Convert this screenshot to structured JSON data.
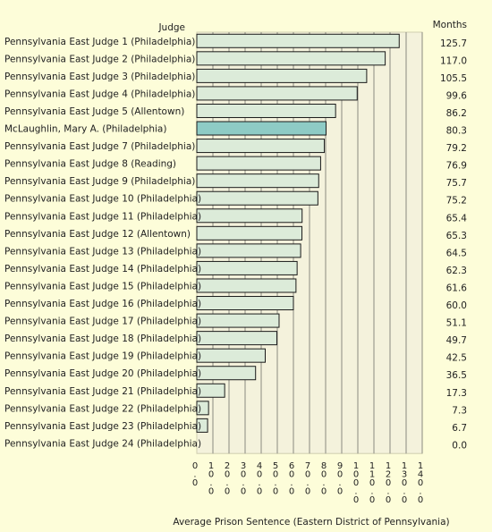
{
  "chart_data": {
    "type": "bar",
    "orientation": "horizontal",
    "category_header": "Judge",
    "value_header": "Months",
    "xlabel": "Average Prison Sentence (Eastern District of Pennsylvania)",
    "xlim": [
      0,
      140
    ],
    "xticks": [
      "0.0",
      "10.0",
      "20.0",
      "30.0",
      "40.0",
      "50.0",
      "60.0",
      "70.0",
      "80.0",
      "90.0",
      "100.0",
      "110.0",
      "120.0",
      "130.0",
      "140.0"
    ],
    "grid": true,
    "bar_color": "#dcebd9",
    "highlight_color": "#8ecbc5",
    "plot_background": "#f4f2dc",
    "categories": [
      "Pennsylvania East Judge 1 (Philadelphia)",
      "Pennsylvania East Judge 2 (Philadelphia)",
      "Pennsylvania East Judge 3 (Philadelphia)",
      "Pennsylvania East Judge 4 (Philadelphia)",
      "Pennsylvania East Judge 5 (Allentown)",
      "McLaughlin, Mary A. (Philadelphia)",
      "Pennsylvania East Judge 7 (Philadelphia)",
      "Pennsylvania East Judge 8 (Reading)",
      "Pennsylvania East Judge 9 (Philadelphia)",
      "Pennsylvania East Judge 10 (Philadelphia)",
      "Pennsylvania East Judge 11 (Philadelphia)",
      "Pennsylvania East Judge 12 (Allentown)",
      "Pennsylvania East Judge 13 (Philadelphia)",
      "Pennsylvania East Judge 14 (Philadelphia)",
      "Pennsylvania East Judge 15 (Philadelphia)",
      "Pennsylvania East Judge 16 (Philadelphia)",
      "Pennsylvania East Judge 17 (Philadelphia)",
      "Pennsylvania East Judge 18 (Philadelphia)",
      "Pennsylvania East Judge 19 (Philadelphia)",
      "Pennsylvania East Judge 20 (Philadelphia)",
      "Pennsylvania East Judge 21 (Philadelphia)",
      "Pennsylvania East Judge 22 (Philadelphia)",
      "Pennsylvania East Judge 23 (Philadelphia)",
      "Pennsylvania East Judge 24 (Philadelphia)"
    ],
    "values": [
      125.7,
      117.0,
      105.5,
      99.6,
      86.2,
      80.3,
      79.2,
      76.9,
      75.7,
      75.2,
      65.4,
      65.3,
      64.5,
      62.3,
      61.6,
      60.0,
      51.1,
      49.7,
      42.5,
      36.5,
      17.3,
      7.3,
      6.7,
      0.0
    ],
    "value_labels": [
      "125.7",
      "117.0",
      "105.5",
      "99.6",
      "86.2",
      "80.3",
      "79.2",
      "76.9",
      "75.7",
      "75.2",
      "65.4",
      "65.3",
      "64.5",
      "62.3",
      "61.6",
      "60.0",
      "51.1",
      "49.7",
      "42.5",
      "36.5",
      "17.3",
      "7.3",
      "6.7",
      "0.0"
    ],
    "highlight_index": 5
  }
}
